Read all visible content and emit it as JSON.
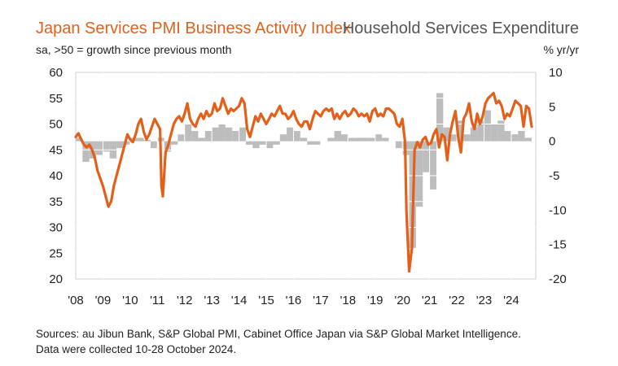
{
  "title_left": "Japan Services PMI Business Activity Index",
  "title_right": "Household Services Expenditure",
  "subtitle_left": "sa, >50 = growth since previous month",
  "subtitle_right": "% yr/yr",
  "source_line1": "Sources: au Jibun Bank, S&P Global PMI, Cabinet Office Japan via S&P Global Market Intelligence.",
  "source_line2": "Data were collected 10-28 October 2024.",
  "colors": {
    "pmi_line": "#e2601a",
    "bars": "#bdbdbd",
    "gridline": "#ffffff",
    "plot_bg": "#ffffff"
  },
  "chart_data": {
    "type": "line+bar",
    "x_tick_labels": [
      "'08",
      "'09",
      "'10",
      "'11",
      "'12",
      "'13",
      "'14",
      "'15",
      "'16",
      "'17",
      "'18",
      "'19",
      "'20",
      "'21",
      "'22",
      "'23",
      "'24"
    ],
    "x_range": [
      2008.0,
      2024.9
    ],
    "left_axis": {
      "label": "",
      "range": [
        20,
        60
      ],
      "ticks": [
        20,
        25,
        30,
        35,
        40,
        45,
        50,
        55,
        60
      ]
    },
    "right_axis": {
      "label": "% yr/yr",
      "range": [
        -20,
        10
      ],
      "ticks": [
        -20,
        -15,
        -10,
        -5,
        0,
        5,
        10
      ]
    },
    "series": [
      {
        "name": "Japan Services PMI Business Activity Index",
        "kind": "line",
        "axis": "left",
        "points": [
          [
            2008.0,
            47.5
          ],
          [
            2008.1,
            48.2
          ],
          [
            2008.2,
            47.0
          ],
          [
            2008.3,
            46.0
          ],
          [
            2008.4,
            45.5
          ],
          [
            2008.5,
            46.0
          ],
          [
            2008.6,
            45.0
          ],
          [
            2008.7,
            43.5
          ],
          [
            2008.8,
            41.0
          ],
          [
            2008.9,
            39.5
          ],
          [
            2009.0,
            38.0
          ],
          [
            2009.1,
            36.0
          ],
          [
            2009.2,
            34.0
          ],
          [
            2009.3,
            35.0
          ],
          [
            2009.4,
            38.0
          ],
          [
            2009.5,
            40.0
          ],
          [
            2009.6,
            42.0
          ],
          [
            2009.7,
            44.0
          ],
          [
            2009.8,
            46.0
          ],
          [
            2009.9,
            48.0
          ],
          [
            2010.0,
            47.0
          ],
          [
            2010.1,
            46.5
          ],
          [
            2010.2,
            48.0
          ],
          [
            2010.3,
            50.0
          ],
          [
            2010.4,
            51.0
          ],
          [
            2010.5,
            48.5
          ],
          [
            2010.6,
            47.0
          ],
          [
            2010.7,
            48.0
          ],
          [
            2010.8,
            49.5
          ],
          [
            2010.9,
            51.0
          ],
          [
            2011.0,
            50.0
          ],
          [
            2011.1,
            49.0
          ],
          [
            2011.15,
            38.0
          ],
          [
            2011.2,
            36.0
          ],
          [
            2011.3,
            44.5
          ],
          [
            2011.4,
            46.0
          ],
          [
            2011.5,
            48.0
          ],
          [
            2011.6,
            50.0
          ],
          [
            2011.7,
            51.0
          ],
          [
            2011.8,
            51.5
          ],
          [
            2011.9,
            50.5
          ],
          [
            2012.0,
            52.0
          ],
          [
            2012.1,
            54.0
          ],
          [
            2012.2,
            51.0
          ],
          [
            2012.3,
            50.0
          ],
          [
            2012.4,
            49.5
          ],
          [
            2012.5,
            51.0
          ],
          [
            2012.6,
            52.0
          ],
          [
            2012.7,
            51.0
          ],
          [
            2012.8,
            52.5
          ],
          [
            2012.9,
            51.5
          ],
          [
            2013.0,
            52.0
          ],
          [
            2013.1,
            54.0
          ],
          [
            2013.2,
            52.5
          ],
          [
            2013.3,
            53.0
          ],
          [
            2013.4,
            55.0
          ],
          [
            2013.5,
            53.5
          ],
          [
            2013.6,
            52.0
          ],
          [
            2013.7,
            53.0
          ],
          [
            2013.8,
            52.5
          ],
          [
            2013.9,
            53.0
          ],
          [
            2014.0,
            53.5
          ],
          [
            2014.1,
            55.0
          ],
          [
            2014.2,
            54.0
          ],
          [
            2014.3,
            49.0
          ],
          [
            2014.4,
            47.5
          ],
          [
            2014.5,
            49.5
          ],
          [
            2014.6,
            51.5
          ],
          [
            2014.7,
            50.5
          ],
          [
            2014.8,
            52.0
          ],
          [
            2014.9,
            51.0
          ],
          [
            2015.0,
            50.0
          ],
          [
            2015.1,
            51.0
          ],
          [
            2015.2,
            52.0
          ],
          [
            2015.3,
            51.5
          ],
          [
            2015.4,
            52.5
          ],
          [
            2015.5,
            53.5
          ],
          [
            2015.6,
            52.0
          ],
          [
            2015.7,
            52.0
          ],
          [
            2015.8,
            51.0
          ],
          [
            2015.9,
            51.5
          ],
          [
            2016.0,
            52.5
          ],
          [
            2016.1,
            51.0
          ],
          [
            2016.2,
            50.0
          ],
          [
            2016.3,
            49.5
          ],
          [
            2016.4,
            50.5
          ],
          [
            2016.5,
            50.5
          ],
          [
            2016.6,
            49.0
          ],
          [
            2016.7,
            51.0
          ],
          [
            2016.8,
            52.5
          ],
          [
            2016.9,
            52.0
          ],
          [
            2017.0,
            51.5
          ],
          [
            2017.1,
            52.5
          ],
          [
            2017.2,
            53.0
          ],
          [
            2017.3,
            52.5
          ],
          [
            2017.4,
            53.0
          ],
          [
            2017.5,
            51.0
          ],
          [
            2017.6,
            52.0
          ],
          [
            2017.7,
            51.0
          ],
          [
            2017.8,
            52.0
          ],
          [
            2017.9,
            52.5
          ],
          [
            2018.0,
            51.5
          ],
          [
            2018.1,
            52.0
          ],
          [
            2018.2,
            53.0
          ],
          [
            2018.3,
            52.5
          ],
          [
            2018.4,
            51.5
          ],
          [
            2018.5,
            52.0
          ],
          [
            2018.6,
            51.5
          ],
          [
            2018.7,
            52.0
          ],
          [
            2018.8,
            50.5
          ],
          [
            2018.9,
            52.5
          ],
          [
            2019.0,
            53.0
          ],
          [
            2019.1,
            51.5
          ],
          [
            2019.2,
            52.0
          ],
          [
            2019.3,
            51.5
          ],
          [
            2019.4,
            53.0
          ],
          [
            2019.5,
            53.0
          ],
          [
            2019.6,
            52.5
          ],
          [
            2019.7,
            52.0
          ],
          [
            2019.8,
            50.0
          ],
          [
            2019.9,
            49.5
          ],
          [
            2020.0,
            51.0
          ],
          [
            2020.1,
            46.5
          ],
          [
            2020.15,
            33.0
          ],
          [
            2020.25,
            21.5
          ],
          [
            2020.35,
            26.0
          ],
          [
            2020.45,
            45.0
          ],
          [
            2020.55,
            46.5
          ],
          [
            2020.65,
            45.5
          ],
          [
            2020.75,
            47.0
          ],
          [
            2020.85,
            47.5
          ],
          [
            2020.95,
            46.0
          ],
          [
            2021.05,
            46.3
          ],
          [
            2021.15,
            48.0
          ],
          [
            2021.25,
            49.0
          ],
          [
            2021.35,
            45.5
          ],
          [
            2021.45,
            48.0
          ],
          [
            2021.55,
            47.5
          ],
          [
            2021.65,
            43.0
          ],
          [
            2021.75,
            48.0
          ],
          [
            2021.85,
            50.5
          ],
          [
            2021.95,
            52.5
          ],
          [
            2022.05,
            47.5
          ],
          [
            2022.15,
            44.5
          ],
          [
            2022.25,
            51.0
          ],
          [
            2022.35,
            52.0
          ],
          [
            2022.45,
            54.0
          ],
          [
            2022.55,
            50.5
          ],
          [
            2022.65,
            49.0
          ],
          [
            2022.75,
            52.0
          ],
          [
            2022.85,
            50.0
          ],
          [
            2022.95,
            51.5
          ],
          [
            2023.05,
            54.0
          ],
          [
            2023.15,
            55.0
          ],
          [
            2023.25,
            55.5
          ],
          [
            2023.35,
            56.0
          ],
          [
            2023.45,
            54.0
          ],
          [
            2023.55,
            54.5
          ],
          [
            2023.65,
            53.5
          ],
          [
            2023.75,
            51.0
          ],
          [
            2023.85,
            52.0
          ],
          [
            2023.95,
            51.5
          ],
          [
            2024.05,
            53.0
          ],
          [
            2024.15,
            54.5
          ],
          [
            2024.25,
            54.0
          ],
          [
            2024.35,
            53.5
          ],
          [
            2024.45,
            49.5
          ],
          [
            2024.55,
            53.5
          ],
          [
            2024.65,
            53.0
          ],
          [
            2024.75,
            49.5
          ]
        ]
      },
      {
        "name": "Household Services Expenditure",
        "kind": "bar",
        "axis": "right",
        "bar_width_years": 0.25,
        "points": [
          [
            2008.0,
            0.5
          ],
          [
            2008.25,
            -3.0
          ],
          [
            2008.5,
            -2.5
          ],
          [
            2008.75,
            -2.0
          ],
          [
            2009.0,
            -1.5
          ],
          [
            2009.25,
            -2.5
          ],
          [
            2009.5,
            -1.0
          ],
          [
            2009.75,
            -0.5
          ],
          [
            2010.0,
            0.5
          ],
          [
            2010.25,
            0.5
          ],
          [
            2010.5,
            0.2
          ],
          [
            2010.75,
            -1.0
          ],
          [
            2011.0,
            0.5
          ],
          [
            2011.25,
            -1.5
          ],
          [
            2011.5,
            -0.5
          ],
          [
            2011.75,
            1.0
          ],
          [
            2012.0,
            2.5
          ],
          [
            2012.25,
            1.5
          ],
          [
            2012.5,
            0.5
          ],
          [
            2012.75,
            1.5
          ],
          [
            2013.0,
            2.0
          ],
          [
            2013.25,
            2.5
          ],
          [
            2013.5,
            2.0
          ],
          [
            2013.75,
            1.5
          ],
          [
            2014.0,
            2.0
          ],
          [
            2014.25,
            -0.5
          ],
          [
            2014.5,
            -1.0
          ],
          [
            2014.75,
            -0.5
          ],
          [
            2015.0,
            -1.0
          ],
          [
            2015.25,
            -0.5
          ],
          [
            2015.5,
            1.0
          ],
          [
            2015.75,
            2.0
          ],
          [
            2016.0,
            1.5
          ],
          [
            2016.25,
            0.5
          ],
          [
            2016.5,
            -0.5
          ],
          [
            2016.75,
            -0.5
          ],
          [
            2017.0,
            0.0
          ],
          [
            2017.25,
            0.5
          ],
          [
            2017.5,
            1.5
          ],
          [
            2017.75,
            1.0
          ],
          [
            2018.0,
            0.5
          ],
          [
            2018.25,
            0.5
          ],
          [
            2018.5,
            0.5
          ],
          [
            2018.75,
            0.5
          ],
          [
            2019.0,
            1.0
          ],
          [
            2019.25,
            0.5
          ],
          [
            2019.5,
            0.0
          ],
          [
            2019.75,
            -1.0
          ],
          [
            2020.0,
            -2.0
          ],
          [
            2020.25,
            -15.5
          ],
          [
            2020.5,
            -9.5
          ],
          [
            2020.75,
            -4.5
          ],
          [
            2021.0,
            -7.0
          ],
          [
            2021.25,
            7.0
          ],
          [
            2021.5,
            2.0
          ],
          [
            2021.75,
            1.0
          ],
          [
            2022.0,
            3.0
          ],
          [
            2022.25,
            1.0
          ],
          [
            2022.5,
            2.0
          ],
          [
            2022.75,
            3.0
          ],
          [
            2023.0,
            4.5
          ],
          [
            2023.25,
            2.5
          ],
          [
            2023.5,
            3.0
          ],
          [
            2023.75,
            1.5
          ],
          [
            2024.0,
            1.0
          ],
          [
            2024.25,
            1.5
          ],
          [
            2024.5,
            0.5
          ]
        ]
      }
    ]
  }
}
